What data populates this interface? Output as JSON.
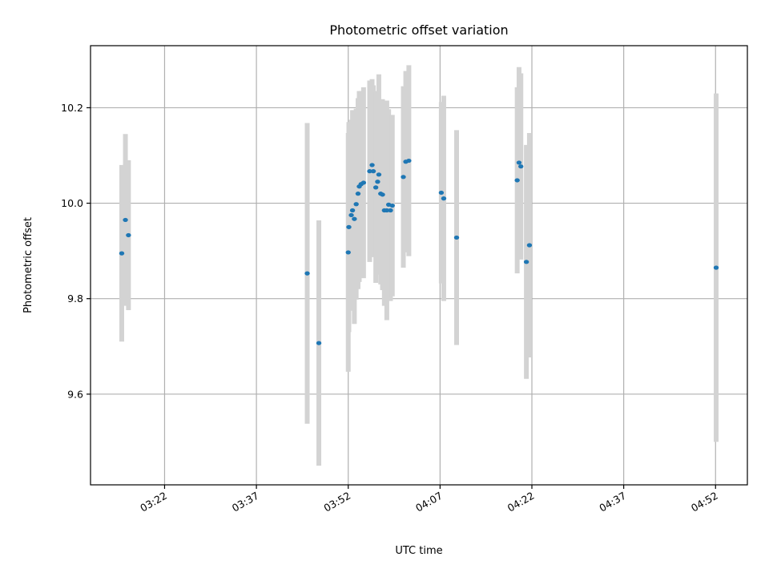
{
  "chart_data": {
    "type": "scatter",
    "title": "Photometric offset variation",
    "xlabel": "UTC time",
    "ylabel": "Photometric offset",
    "x_tick_labels": [
      "03:22",
      "03:37",
      "03:52",
      "04:07",
      "04:22",
      "04:37",
      "04:52"
    ],
    "y_tick_labels": [
      "9.6",
      "9.8",
      "10.0",
      "10.2"
    ],
    "y_ticks": [
      9.6,
      9.8,
      10.0,
      10.2
    ],
    "xlim": [
      "03:09:54",
      "04:57:12"
    ],
    "ylim": [
      9.41,
      10.33
    ],
    "grid": true,
    "error_bar_color": "#d3d3d3",
    "marker_color": "#1f77b4",
    "points": [
      {
        "t": "03:15:00",
        "y": 9.895,
        "err": 0.185
      },
      {
        "t": "03:15:36",
        "y": 9.965,
        "err": 0.18
      },
      {
        "t": "03:16:06",
        "y": 9.933,
        "err": 0.157
      },
      {
        "t": "03:45:18",
        "y": 9.853,
        "err": 0.315
      },
      {
        "t": "03:47:12",
        "y": 9.707,
        "err": 0.257
      },
      {
        "t": "03:52:00",
        "y": 9.897,
        "err": 0.25
      },
      {
        "t": "03:52:06",
        "y": 9.95,
        "err": 0.22
      },
      {
        "t": "03:52:30",
        "y": 9.975,
        "err": 0.2
      },
      {
        "t": "03:52:42",
        "y": 9.985,
        "err": 0.21
      },
      {
        "t": "03:53:00",
        "y": 9.967,
        "err": 0.22
      },
      {
        "t": "03:53:18",
        "y": 9.998,
        "err": 0.2
      },
      {
        "t": "03:53:36",
        "y": 10.02,
        "err": 0.2
      },
      {
        "t": "03:53:48",
        "y": 10.035,
        "err": 0.2
      },
      {
        "t": "03:54:06",
        "y": 10.04,
        "err": 0.195
      },
      {
        "t": "03:54:30",
        "y": 10.043,
        "err": 0.2
      },
      {
        "t": "03:55:30",
        "y": 10.067,
        "err": 0.19
      },
      {
        "t": "03:55:54",
        "y": 10.08,
        "err": 0.18
      },
      {
        "t": "03:56:06",
        "y": 10.067,
        "err": 0.18
      },
      {
        "t": "03:56:30",
        "y": 10.033,
        "err": 0.2
      },
      {
        "t": "03:56:48",
        "y": 10.045,
        "err": 0.19
      },
      {
        "t": "03:57:00",
        "y": 10.06,
        "err": 0.21
      },
      {
        "t": "03:57:18",
        "y": 10.02,
        "err": 0.19
      },
      {
        "t": "03:57:36",
        "y": 10.018,
        "err": 0.2
      },
      {
        "t": "03:57:54",
        "y": 9.985,
        "err": 0.2
      },
      {
        "t": "03:58:18",
        "y": 9.985,
        "err": 0.23
      },
      {
        "t": "03:58:36",
        "y": 9.997,
        "err": 0.2
      },
      {
        "t": "03:58:54",
        "y": 9.985,
        "err": 0.19
      },
      {
        "t": "03:59:12",
        "y": 9.995,
        "err": 0.19
      },
      {
        "t": "04:01:00",
        "y": 10.055,
        "err": 0.19
      },
      {
        "t": "04:01:24",
        "y": 10.087,
        "err": 0.19
      },
      {
        "t": "04:01:54",
        "y": 10.089,
        "err": 0.2
      },
      {
        "t": "04:07:12",
        "y": 10.022,
        "err": 0.19
      },
      {
        "t": "04:07:36",
        "y": 10.01,
        "err": 0.215
      },
      {
        "t": "04:09:42",
        "y": 9.928,
        "err": 0.225
      },
      {
        "t": "04:19:36",
        "y": 10.048,
        "err": 0.195
      },
      {
        "t": "04:19:54",
        "y": 10.085,
        "err": 0.2
      },
      {
        "t": "04:20:12",
        "y": 10.077,
        "err": 0.195
      },
      {
        "t": "04:21:06",
        "y": 9.877,
        "err": 0.245
      },
      {
        "t": "04:21:36",
        "y": 9.912,
        "err": 0.235
      },
      {
        "t": "04:52:06",
        "y": 9.865,
        "err": 0.365
      }
    ]
  }
}
